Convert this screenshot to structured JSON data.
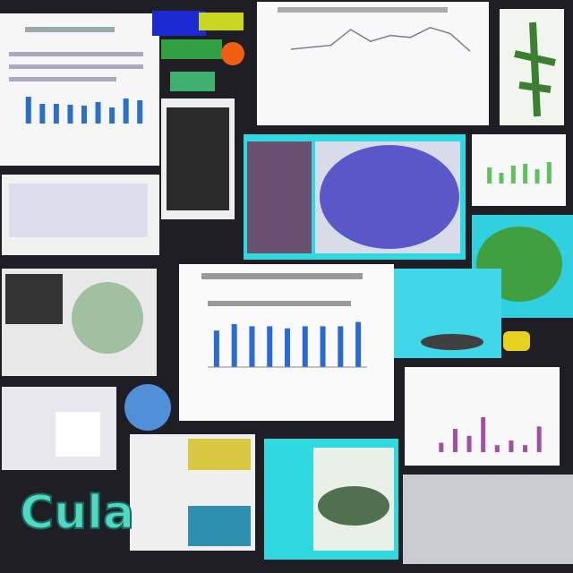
{
  "logo_text": "Cula",
  "panels": {
    "top_left_chart": {
      "values": [
        30,
        22,
        22,
        21,
        20,
        24,
        18,
        28,
        26
      ]
    },
    "top_line_chart": {
      "values": [
        5,
        5.2,
        5.4,
        7,
        5.8,
        6.4,
        6.2,
        7.2,
        6.6,
        4.8
      ]
    },
    "center_chart": {
      "values": [
        34,
        40,
        38,
        38,
        36,
        38,
        38,
        38,
        42
      ]
    },
    "right_chart": {
      "values": [
        8,
        20,
        14,
        30,
        6,
        10,
        6,
        22
      ]
    },
    "small_right_chart": {
      "values": [
        18,
        12,
        20,
        22,
        16,
        24
      ]
    }
  }
}
